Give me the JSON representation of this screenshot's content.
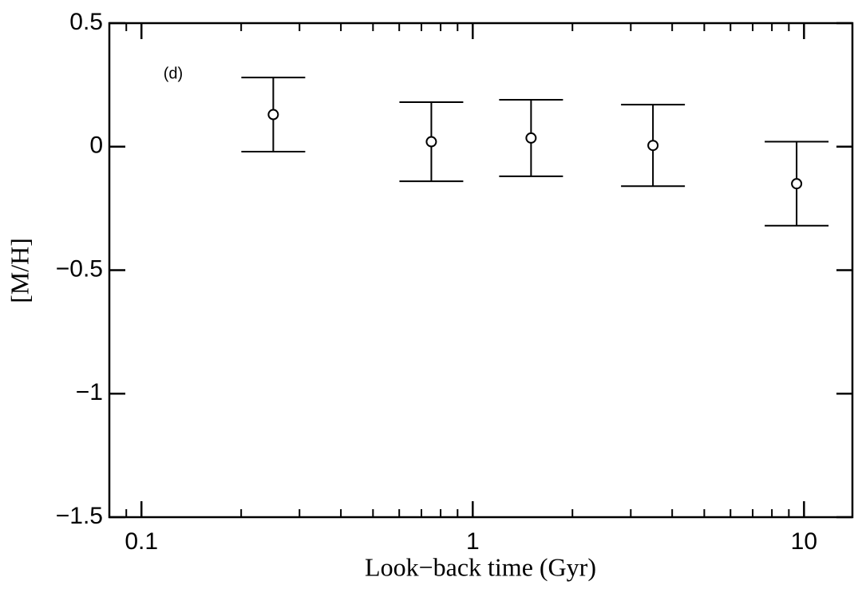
{
  "chart_data": {
    "type": "scatter",
    "annotation": "(d)",
    "xlabel": "Look−back time (Gyr)",
    "ylabel": "[M/H]",
    "x": [
      0.25,
      0.75,
      1.5,
      3.5,
      9.5
    ],
    "values": [
      0.13,
      0.02,
      0.035,
      0.005,
      -0.15
    ],
    "errors": [
      0.15,
      0.16,
      0.155,
      0.165,
      0.17
    ],
    "color": "#000000",
    "xscale": "log",
    "xlim": [
      0.08,
      14
    ],
    "xticks": [
      0.1,
      1,
      10
    ],
    "xminorticks": [
      0.09,
      0.2,
      0.3,
      0.4,
      0.5,
      0.6,
      0.7,
      0.8,
      0.9,
      2,
      3,
      4,
      5,
      6,
      7,
      8,
      9
    ],
    "ylim": [
      -1.5,
      0.5
    ],
    "yticks": [
      0.5,
      0,
      {
        "value": -0.5,
        "label": "−0.5"
      },
      {
        "value": -1,
        "label": "−1"
      },
      {
        "value": -1.5,
        "label": "−1.5"
      }
    ]
  }
}
